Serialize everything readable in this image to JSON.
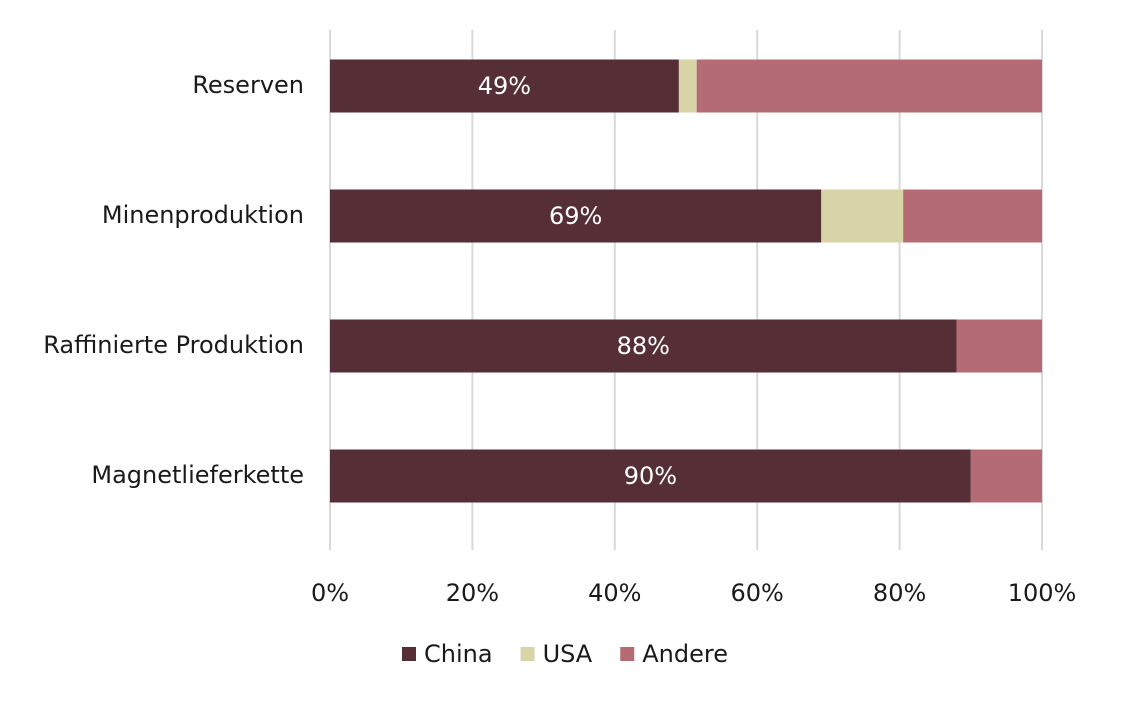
{
  "chart_data": {
    "type": "stacked-bar-horizontal",
    "categories": [
      "Reserven",
      "Minenproduktion",
      "Raffinierte Produktion",
      "Magnetlieferkette"
    ],
    "series": [
      {
        "name": "China",
        "color": "#562e35",
        "values": [
          49,
          69,
          88,
          90
        ],
        "value_labels": [
          "49%",
          "69%",
          "88%",
          "90%"
        ]
      },
      {
        "name": "USA",
        "color": "#d9d3a8",
        "values": [
          2.5,
          11.5,
          0,
          0
        ]
      },
      {
        "name": "Andere",
        "color": "#b56b74",
        "values": [
          48.5,
          19.5,
          12,
          10
        ]
      }
    ],
    "xlim": [
      0,
      100
    ],
    "xticks": [
      {
        "value": 0,
        "label": "0%"
      },
      {
        "value": 20,
        "label": "20%"
      },
      {
        "value": 40,
        "label": "40%"
      },
      {
        "value": 60,
        "label": "60%"
      },
      {
        "value": 80,
        "label": "80%"
      },
      {
        "value": 100,
        "label": "100%"
      }
    ],
    "grid": true,
    "legend": "bottom"
  }
}
